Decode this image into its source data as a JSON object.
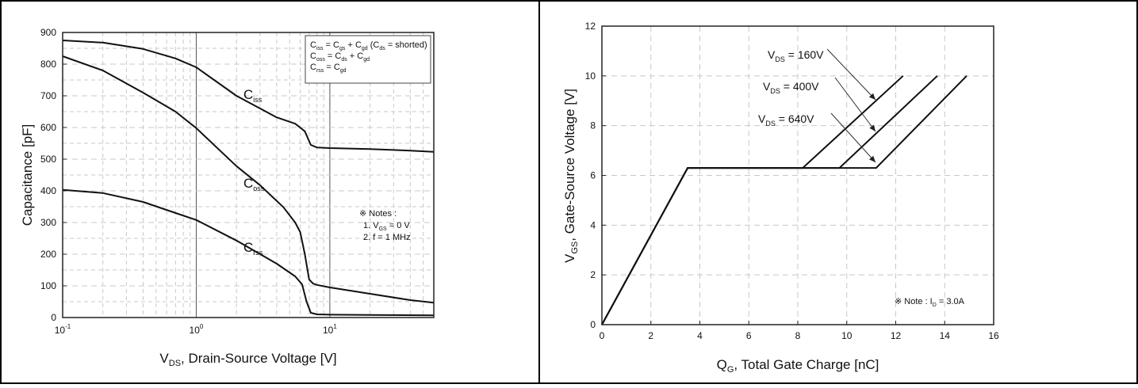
{
  "chart_data": [
    {
      "type": "line",
      "xscale": "log",
      "xlim": [
        0.1,
        60
      ],
      "ylim": [
        0,
        900
      ],
      "xticks": [
        {
          "value": 0.1,
          "base": "10",
          "exp": "-1"
        },
        {
          "value": 1,
          "base": "10",
          "exp": "0"
        },
        {
          "value": 10,
          "base": "10",
          "exp": "1"
        }
      ],
      "yticks": [
        0,
        100,
        200,
        300,
        400,
        500,
        600,
        700,
        800,
        900
      ],
      "xlabel": {
        "main": "V",
        "sub": "DS",
        "rest": ", Drain-Source Voltage [V]"
      },
      "ylabel": "Capacitance [pF]",
      "grid": true,
      "series": [
        {
          "name": "Ciss",
          "label": {
            "main": "C",
            "sub": "iss"
          },
          "x": [
            0.1,
            0.2,
            0.4,
            0.7,
            1,
            2,
            4,
            5.5,
            6.5,
            7.2,
            8,
            10,
            20,
            40,
            60
          ],
          "y": [
            875,
            868,
            848,
            818,
            790,
            700,
            632,
            612,
            588,
            545,
            537,
            535,
            532,
            527,
            523
          ]
        },
        {
          "name": "Coss",
          "label": {
            "main": "C",
            "sub": "oss"
          },
          "x": [
            0.1,
            0.2,
            0.4,
            0.7,
            1,
            2,
            3,
            4.5,
            5.5,
            6,
            6.5,
            7,
            7.5,
            8,
            10,
            20,
            40,
            60
          ],
          "y": [
            825,
            780,
            710,
            650,
            598,
            478,
            418,
            348,
            300,
            270,
            200,
            120,
            107,
            103,
            95,
            75,
            55,
            47
          ]
        },
        {
          "name": "Crss",
          "label": {
            "main": "C",
            "sub": "rss"
          },
          "x": [
            0.1,
            0.2,
            0.4,
            0.7,
            1,
            2,
            4,
            5.5,
            6.2,
            6.7,
            7.2,
            8,
            10,
            20,
            60
          ],
          "y": [
            403,
            393,
            365,
            330,
            308,
            243,
            170,
            130,
            105,
            50,
            15,
            10,
            9,
            8,
            7
          ]
        }
      ],
      "legend_lines": [
        [
          {
            "t": "C"
          },
          {
            "t": "iss",
            "s": 1
          },
          {
            "t": " = C"
          },
          {
            "t": "gs",
            "s": 1
          },
          {
            "t": " + C"
          },
          {
            "t": "gd",
            "s": 1
          },
          {
            "t": " (C"
          },
          {
            "t": "ds",
            "s": 1
          },
          {
            "t": " = shorted)"
          }
        ],
        [
          {
            "t": "C"
          },
          {
            "t": "oss",
            "s": 1
          },
          {
            "t": " = C"
          },
          {
            "t": "ds",
            "s": 1
          },
          {
            "t": " + C"
          },
          {
            "t": "gd",
            "s": 1
          }
        ],
        [
          {
            "t": "C"
          },
          {
            "t": "rss",
            "s": 1
          },
          {
            "t": " = C"
          },
          {
            "t": "gd",
            "s": 1
          }
        ]
      ],
      "notes": [
        [
          {
            "t": "※ Notes :"
          }
        ],
        [
          {
            "t": "1. V"
          },
          {
            "t": "GS",
            "s": 1
          },
          {
            "t": " = 0 V"
          }
        ],
        [
          {
            "t": "2. f = 1 MHz"
          }
        ]
      ]
    },
    {
      "type": "line",
      "xlim": [
        0,
        16
      ],
      "ylim": [
        0,
        12
      ],
      "xticks": [
        0,
        2,
        4,
        6,
        8,
        10,
        12,
        14,
        16
      ],
      "yticks": [
        0,
        2,
        4,
        6,
        8,
        10,
        12
      ],
      "xlabel": {
        "main": "Q",
        "sub": "G",
        "rest": ", Total Gate Charge [nC]"
      },
      "ylabel": {
        "main": "V",
        "sub": "GS",
        "rest": ", Gate-Source Voltage [V]"
      },
      "grid": true,
      "series": [
        {
          "name": "VDS = 160V",
          "label": {
            "main": "V",
            "sub": "DS",
            "rest": " = 160V"
          },
          "x": [
            0,
            3.5,
            8.2,
            12.3
          ],
          "y": [
            0,
            6.3,
            6.3,
            10
          ]
        },
        {
          "name": "VDS = 400V",
          "label": {
            "main": "V",
            "sub": "DS",
            "rest": " = 400V"
          },
          "x": [
            0,
            3.5,
            9.7,
            13.7
          ],
          "y": [
            0,
            6.3,
            6.3,
            10
          ]
        },
        {
          "name": "VDS = 640V",
          "label": {
            "main": "V",
            "sub": "DS",
            "rest": " = 640V"
          },
          "x": [
            0,
            3.5,
            11.2,
            14.9
          ],
          "y": [
            0,
            6.3,
            6.3,
            10
          ]
        }
      ],
      "note": [
        {
          "t": "※ Note : I"
        },
        {
          "t": "D",
          "s": 1
        },
        {
          "t": " = 3.0A"
        }
      ]
    }
  ]
}
